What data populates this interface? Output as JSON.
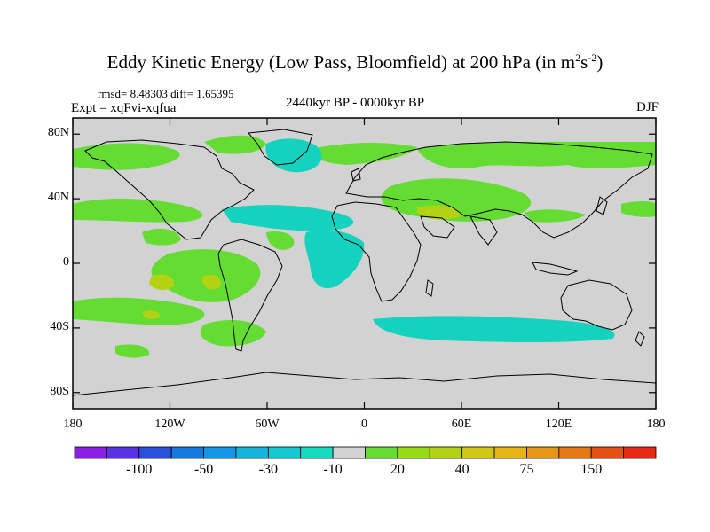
{
  "title": {
    "main": "Eddy Kinetic Energy (Low Pass, Bloomfield) at 200 hPa (in m",
    "exp1": "2",
    "mid": "s",
    "exp2": "-2",
    "end": ")"
  },
  "stats": "rmsd= 8.48303 diff= 1.65395",
  "expt": "Expt = xqFvi-xqfua",
  "period": "2440kyr BP - 0000kyr BP",
  "season": "DJF",
  "map": {
    "projection": "cylindrical-equidistant",
    "lon_range": [
      -180,
      180
    ],
    "lat_range": [
      -90,
      90
    ],
    "background_color": "#d2d2d2",
    "coastline_color": "#000000",
    "y_ticks": [
      {
        "value": 80,
        "label": "80N"
      },
      {
        "value": 40,
        "label": "40N"
      },
      {
        "value": 0,
        "label": "0"
      },
      {
        "value": -40,
        "label": "40S"
      },
      {
        "value": -80,
        "label": "80S"
      }
    ],
    "x_ticks": [
      {
        "value": -180,
        "label": "180"
      },
      {
        "value": -120,
        "label": "120W"
      },
      {
        "value": -60,
        "label": "60W"
      },
      {
        "value": 0,
        "label": "0"
      },
      {
        "value": 60,
        "label": "60E"
      },
      {
        "value": 120,
        "label": "120E"
      },
      {
        "value": 180,
        "label": "180"
      }
    ]
  },
  "colorbar": {
    "colors": [
      "#8c1ee6",
      "#5a32e6",
      "#2850dc",
      "#1478dc",
      "#1496e6",
      "#14b4dc",
      "#14c8d2",
      "#14dcbe",
      "#d2d2d2",
      "#64dc32",
      "#96dc14",
      "#b4d214",
      "#d2c814",
      "#e6b414",
      "#e69614",
      "#e67814",
      "#e65014",
      "#e62814"
    ],
    "labels": [
      {
        "value": "-100",
        "index": 2
      },
      {
        "value": "-50",
        "index": 4
      },
      {
        "value": "-30",
        "index": 6
      },
      {
        "value": "-10",
        "index": 8
      },
      {
        "value": "20",
        "index": 10
      },
      {
        "value": "40",
        "index": 12
      },
      {
        "value": "75",
        "index": 14
      },
      {
        "value": "150",
        "index": 16
      }
    ]
  }
}
